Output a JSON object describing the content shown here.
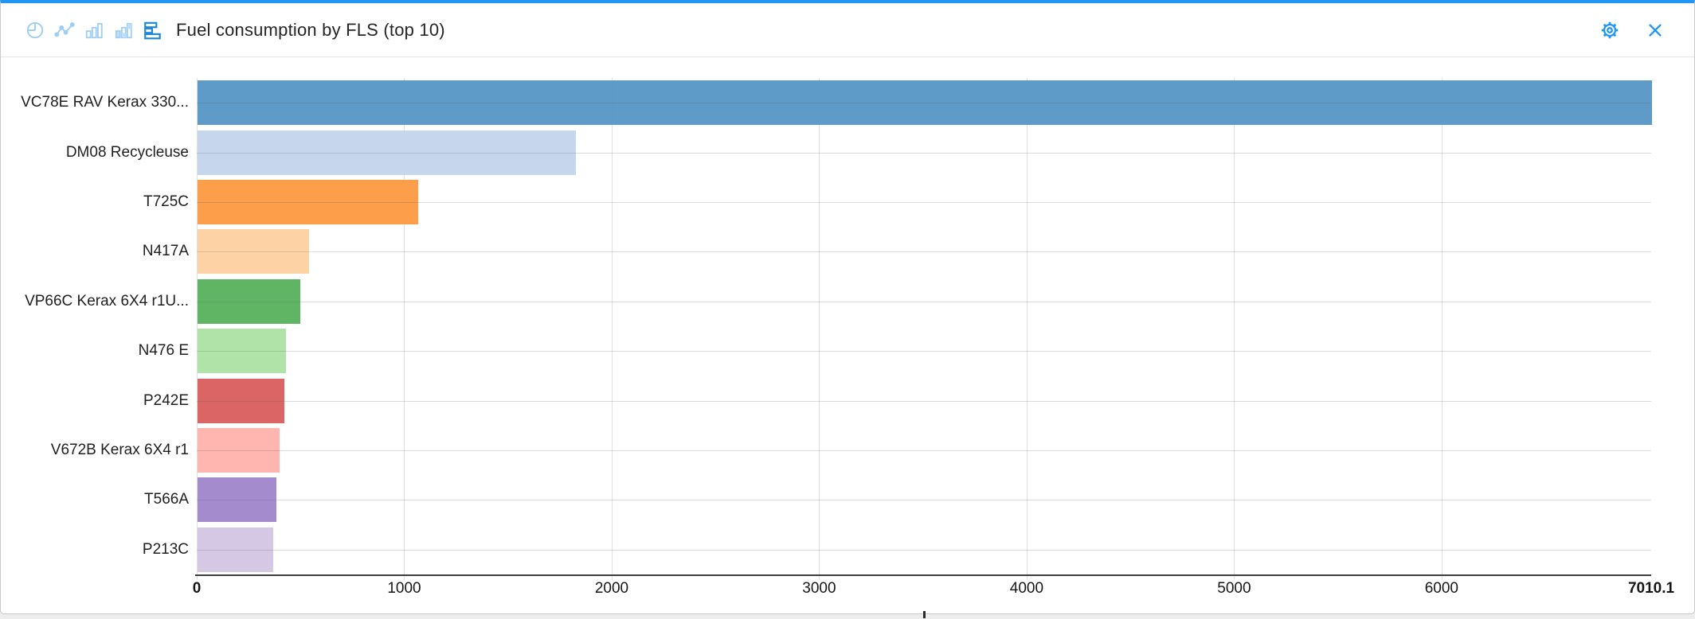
{
  "window": {
    "accent_color": "#2196f3"
  },
  "toolbar": {
    "title": "Fuel consumption by FLS (top 10)",
    "chart_type_buttons": [
      {
        "icon": "pie-chart-icon",
        "selected": false
      },
      {
        "icon": "line-chart-icon",
        "selected": false
      },
      {
        "icon": "bar-chart-icon",
        "selected": false
      },
      {
        "icon": "stacked-bar-chart-icon",
        "selected": false
      },
      {
        "icon": "horizontal-bar-chart-icon",
        "selected": true
      }
    ],
    "icon_color_idle": "#9fcef2",
    "icon_color_selected": "#1e87d5",
    "action_icon_color": "#2196f3"
  },
  "chart_data": {
    "type": "bar",
    "orientation": "horizontal",
    "title": "Fuel consumption by FLS (top 10)",
    "categories": [
      "VC78E RAV Kerax 330...",
      "DM08 Recycleuse",
      "T725C",
      "N417A",
      "VP66C Kerax 6X4 r1U...",
      "N476 E",
      "P242E",
      "V672B Kerax 6X4 r1",
      "T566A",
      "P213C"
    ],
    "values": [
      7010.1,
      1824,
      1065,
      536,
      494,
      425,
      418,
      395,
      381,
      364
    ],
    "colors": [
      "#5596c6",
      "#c3d4ec",
      "#fc9940",
      "#fdd0a0",
      "#57b15c",
      "#ace2a2",
      "#d95c5c",
      "#ffb1ac",
      "#9e85cb",
      "#d2c5e3"
    ],
    "x_ticks": [
      0,
      1000,
      2000,
      3000,
      4000,
      5000,
      6000
    ],
    "x_tick_labels": [
      "0",
      "1000",
      "2000",
      "3000",
      "4000",
      "5000",
      "6000"
    ],
    "x_max": 7010.1,
    "x_max_label": "7010.1",
    "xlim": [
      0,
      7010.1
    ],
    "grid": true,
    "legend": "none"
  }
}
